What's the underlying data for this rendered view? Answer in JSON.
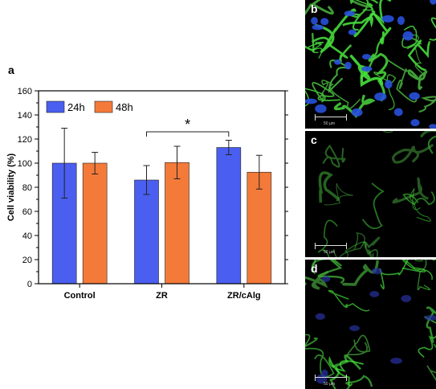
{
  "chart_data": {
    "type": "bar",
    "panel_label": "a",
    "ylabel": "Cell viability (%)",
    "xlabel": "",
    "ylim": [
      0,
      160
    ],
    "yticks": [
      0,
      20,
      40,
      60,
      80,
      100,
      120,
      140,
      160
    ],
    "categories": [
      "Control",
      "ZR",
      "ZR/cAlg"
    ],
    "series": [
      {
        "name": "24h",
        "color": "#4a5ef0",
        "values": [
          100,
          86,
          113
        ],
        "errors": [
          29,
          12,
          6
        ]
      },
      {
        "name": "48h",
        "color": "#f47a3a",
        "values": [
          100,
          100.5,
          92.5
        ],
        "errors": [
          9,
          13.5,
          14
        ]
      }
    ],
    "legend": "top-left",
    "annotation": {
      "text": "*",
      "from_category": "ZR",
      "to_category": "ZR/cAlg",
      "y": 126
    }
  },
  "images": [
    {
      "label": "b",
      "scale": "50 µm",
      "style": "dense-green-cells-blue-nuclei"
    },
    {
      "label": "c",
      "scale": "50 µm",
      "style": "sparse-green"
    },
    {
      "label": "d",
      "scale": "50 µm",
      "style": "green-with-faint-blue"
    }
  ]
}
